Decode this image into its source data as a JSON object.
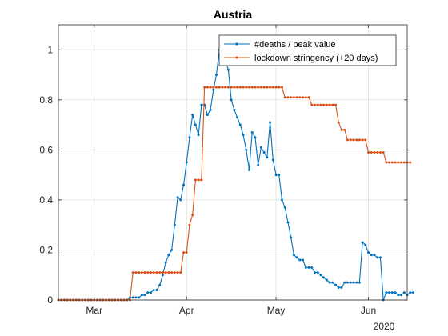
{
  "chart_data": {
    "type": "line",
    "title": "Austria",
    "xlabel": "",
    "ylabel": "",
    "year_label": "2020",
    "x_start": "2020-02-18",
    "x_range": [
      "2020-02-18",
      "2020-06-14"
    ],
    "ylim": [
      0,
      1.1
    ],
    "y_ticks": [
      0,
      0.2,
      0.4,
      0.6,
      0.8,
      1
    ],
    "y_tick_labels": [
      "0",
      "0.2",
      "0.4",
      "0.6",
      "0.8",
      "1"
    ],
    "x_ticks": [
      {
        "date": "2020-03-01",
        "label": "Mar"
      },
      {
        "date": "2020-04-01",
        "label": "Apr"
      },
      {
        "date": "2020-05-01",
        "label": "May"
      },
      {
        "date": "2020-06-01",
        "label": "Jun"
      }
    ],
    "grid": true,
    "legend_position": "top-right",
    "series": [
      {
        "name": "#deaths / peak value",
        "color": "#0072BD",
        "values": [
          0,
          0,
          0,
          0,
          0,
          0,
          0,
          0,
          0,
          0,
          0,
          0,
          0,
          0,
          0,
          0,
          0,
          0,
          0,
          0,
          0,
          0,
          0,
          0,
          0.01,
          0.01,
          0.01,
          0.01,
          0.02,
          0.02,
          0.03,
          0.03,
          0.04,
          0.04,
          0.06,
          0.1,
          0.15,
          0.18,
          0.2,
          0.3,
          0.41,
          0.4,
          0.46,
          0.55,
          0.65,
          0.74,
          0.7,
          0.66,
          0.78,
          0.78,
          0.74,
          0.76,
          0.84,
          0.9,
          1.0,
          1.0,
          0.96,
          0.92,
          0.8,
          0.76,
          0.73,
          0.7,
          0.66,
          0.6,
          0.52,
          0.67,
          0.65,
          0.54,
          0.61,
          0.59,
          0.57,
          0.71,
          0.56,
          0.5,
          0.5,
          0.4,
          0.37,
          0.31,
          0.25,
          0.18,
          0.17,
          0.16,
          0.16,
          0.13,
          0.13,
          0.13,
          0.11,
          0.11,
          0.1,
          0.09,
          0.08,
          0.07,
          0.07,
          0.06,
          0.05,
          0.05,
          0.07,
          0.07,
          0.07,
          0.07,
          0.07,
          0.07,
          0.23,
          0.22,
          0.19,
          0.18,
          0.18,
          0.17,
          0.17,
          0.0,
          0.03,
          0.03,
          0.03,
          0.03,
          0.02,
          0.02,
          0.03,
          0.02,
          0.03,
          0.03
        ]
      },
      {
        "name": "lockdown stringency (+20 days)",
        "color": "#D95319",
        "values": [
          0,
          0,
          0,
          0,
          0,
          0,
          0,
          0,
          0,
          0,
          0,
          0,
          0,
          0,
          0,
          0,
          0,
          0,
          0,
          0,
          0,
          0,
          0,
          0,
          0,
          0.11,
          0.11,
          0.11,
          0.11,
          0.11,
          0.11,
          0.11,
          0.11,
          0.11,
          0.11,
          0.11,
          0.11,
          0.11,
          0.11,
          0.11,
          0.11,
          0.11,
          0.19,
          0.19,
          0.3,
          0.34,
          0.48,
          0.48,
          0.48,
          0.85,
          0.85,
          0.85,
          0.85,
          0.85,
          0.85,
          0.85,
          0.85,
          0.85,
          0.85,
          0.85,
          0.85,
          0.85,
          0.85,
          0.85,
          0.85,
          0.85,
          0.85,
          0.85,
          0.85,
          0.85,
          0.85,
          0.85,
          0.85,
          0.85,
          0.85,
          0.85,
          0.81,
          0.81,
          0.81,
          0.81,
          0.81,
          0.81,
          0.81,
          0.81,
          0.81,
          0.78,
          0.78,
          0.78,
          0.78,
          0.78,
          0.78,
          0.78,
          0.78,
          0.78,
          0.71,
          0.68,
          0.68,
          0.64,
          0.64,
          0.64,
          0.64,
          0.64,
          0.64,
          0.64,
          0.59,
          0.59,
          0.59,
          0.59,
          0.59,
          0.59,
          0.55,
          0.55,
          0.55,
          0.55,
          0.55,
          0.55,
          0.55,
          0.55,
          0.55
        ]
      }
    ]
  }
}
